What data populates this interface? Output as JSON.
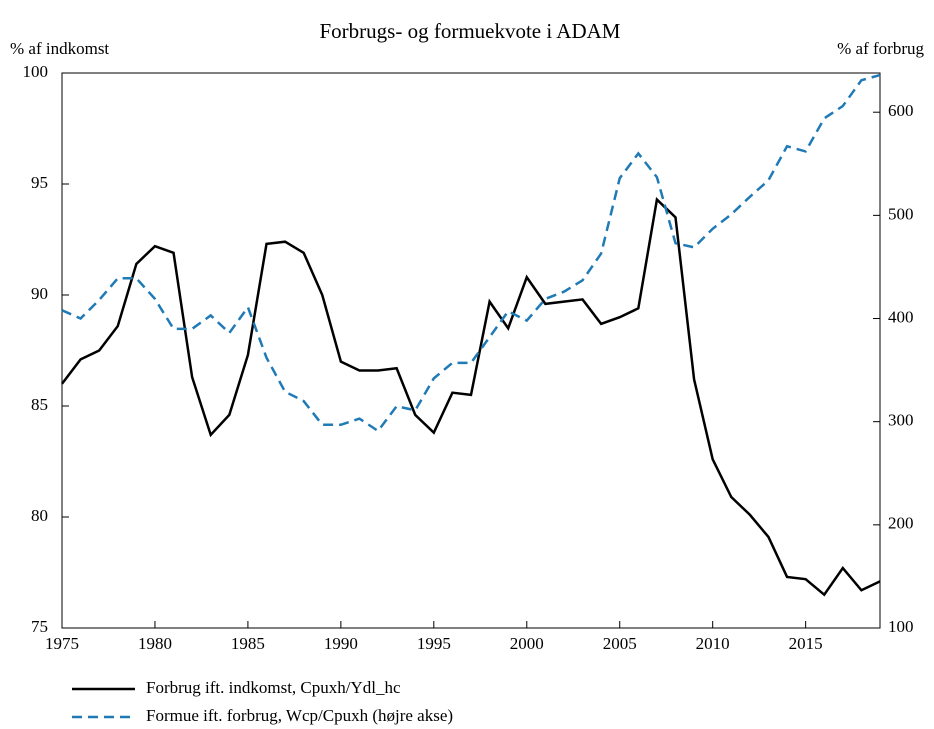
{
  "chart_data": {
    "type": "line",
    "title": "Forbrugs- og formuekvote i ADAM",
    "y_label": "% af indkomst",
    "y2_label": "% af forbrug",
    "x": [
      1975,
      1976,
      1977,
      1978,
      1979,
      1980,
      1981,
      1982,
      1983,
      1984,
      1985,
      1986,
      1987,
      1988,
      1989,
      1990,
      1991,
      1992,
      1993,
      1994,
      1995,
      1996,
      1997,
      1998,
      1999,
      2000,
      2001,
      2002,
      2003,
      2004,
      2005,
      2006,
      2007,
      2008,
      2009,
      2010,
      2011,
      2012,
      2013,
      2014,
      2015,
      2016,
      2017,
      2018,
      2019
    ],
    "series": [
      {
        "name": "Forbrug ift. indkomst, Cpuxh/Ydl_hc",
        "color": "#000000",
        "dash": "solid",
        "values": [
          86.0,
          87.1,
          87.5,
          88.6,
          91.4,
          92.2,
          91.9,
          86.3,
          83.7,
          84.6,
          87.3,
          92.3,
          92.4,
          91.9,
          90.0,
          87.0,
          86.6,
          86.6,
          86.7,
          84.6,
          83.8,
          85.6,
          85.5,
          89.7,
          88.5,
          90.8,
          89.6,
          89.7,
          89.8,
          88.7,
          89.0,
          89.4,
          94.3,
          93.5,
          86.2,
          82.6,
          80.9,
          80.1,
          79.1,
          77.3,
          77.2,
          76.5,
          77.7,
          76.7,
          77.1
        ]
      },
      {
        "name": "Formue ift. forbrug, Wcp/Cpuxh (højre akse)",
        "color": "#1f7ab5",
        "dash": "dashed",
        "axis": "y2",
        "values": [
          408,
          400,
          418,
          439,
          439,
          419,
          390,
          390,
          403,
          386,
          411,
          362,
          329,
          320,
          297,
          297,
          303,
          291,
          315,
          311,
          342,
          357,
          357,
          382,
          407,
          398,
          419,
          426,
          437,
          463,
          536,
          560,
          537,
          473,
          469,
          487,
          501,
          518,
          534,
          567,
          562,
          594,
          606,
          631,
          636
        ]
      }
    ],
    "xlim": [
      1975,
      2019
    ],
    "xticks": [
      1975,
      1980,
      1985,
      1990,
      1995,
      2000,
      2005,
      2010,
      2015
    ],
    "ylim": [
      75,
      100
    ],
    "yticks": [
      75,
      80,
      85,
      90,
      95,
      100
    ],
    "y2lim": [
      100,
      638
    ],
    "y2ticks": [
      100,
      200,
      300,
      400,
      500,
      600
    ]
  }
}
